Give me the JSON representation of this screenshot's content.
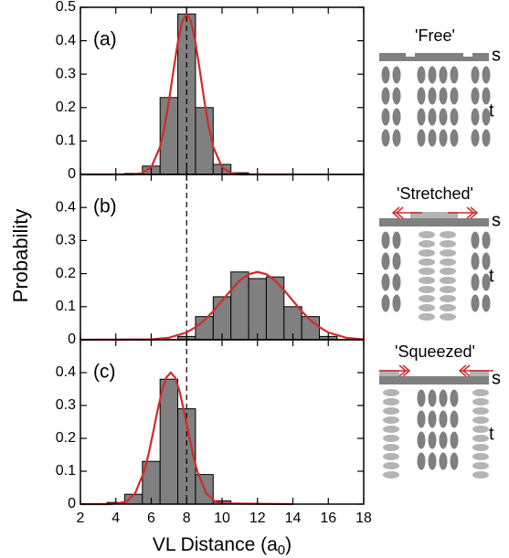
{
  "chart_data": [
    {
      "type": "histogram",
      "label": "(a)",
      "xlim": [
        2,
        18
      ],
      "ylim": [
        0,
        0.5
      ],
      "yticks": [
        0,
        0.1,
        0.2,
        0.3,
        0.4,
        0.5
      ],
      "xticks": [
        2,
        4,
        6,
        8,
        10,
        12,
        14,
        16,
        18
      ],
      "bins": [
        4.5,
        5.5,
        6.5,
        7.5,
        8.5,
        9.5,
        10.5,
        11.5
      ],
      "values": [
        0.003,
        0.025,
        0.23,
        0.48,
        0.2,
        0.03,
        0.005
      ],
      "color": "#808080",
      "reference_x": 8,
      "fit": {
        "color": "#d42a2a",
        "x": [
          2,
          5,
          5.5,
          6,
          6.5,
          6.75,
          7,
          7.25,
          7.5,
          7.75,
          8,
          8.25,
          8.5,
          8.75,
          9,
          9.25,
          9.5,
          10,
          10.5,
          11,
          14
        ],
        "values": [
          0,
          0,
          0.004,
          0.021,
          0.083,
          0.142,
          0.22,
          0.309,
          0.395,
          0.457,
          0.48,
          0.457,
          0.395,
          0.309,
          0.22,
          0.142,
          0.083,
          0.021,
          0.004,
          0,
          0
        ]
      }
    },
    {
      "type": "histogram",
      "label": "(b)",
      "xlim": [
        2,
        18
      ],
      "ylim": [
        0,
        0.5
      ],
      "yticks": [
        0,
        0.1,
        0.2,
        0.3,
        0.4
      ],
      "xticks": [
        2,
        4,
        6,
        8,
        10,
        12,
        14,
        16,
        18
      ],
      "bins": [
        7.5,
        8.5,
        9.5,
        10.5,
        11.5,
        12.5,
        13.5,
        14.5,
        15.5,
        16.5
      ],
      "values": [
        0.01,
        0.07,
        0.13,
        0.205,
        0.185,
        0.19,
        0.1,
        0.07,
        0.01
      ],
      "color": "#808080",
      "reference_x": 8,
      "fit": {
        "color": "#d42a2a",
        "x": [
          2,
          6,
          7,
          8,
          8.5,
          9,
          9.5,
          10,
          10.5,
          11,
          11.5,
          12,
          12.5,
          13,
          13.5,
          14,
          14.5,
          15,
          15.5,
          16,
          17,
          18
        ],
        "values": [
          0,
          0.001,
          0.006,
          0.022,
          0.038,
          0.059,
          0.086,
          0.118,
          0.15,
          0.179,
          0.198,
          0.205,
          0.198,
          0.179,
          0.15,
          0.118,
          0.086,
          0.059,
          0.038,
          0.022,
          0.006,
          0.001
        ]
      }
    },
    {
      "type": "histogram",
      "label": "(c)",
      "xlim": [
        2,
        18
      ],
      "ylim": [
        0,
        0.5
      ],
      "yticks": [
        0,
        0.1,
        0.2,
        0.3,
        0.4
      ],
      "xticks": [
        2,
        4,
        6,
        8,
        10,
        12,
        14,
        16,
        18
      ],
      "bins": [
        3.5,
        4.5,
        5.5,
        6.5,
        7.5,
        8.5,
        9.5,
        10.5
      ],
      "values": [
        0.005,
        0.03,
        0.13,
        0.38,
        0.29,
        0.09,
        0.01
      ],
      "color": "#808080",
      "reference_x": 8,
      "fit": {
        "color": "#d42a2a",
        "x": [
          2,
          3.6,
          4.1,
          4.6,
          5.1,
          5.6,
          5.85,
          6.1,
          6.35,
          6.6,
          6.85,
          7.1,
          7.35,
          7.6,
          7.85,
          8.1,
          8.35,
          8.6,
          9.1,
          9.6,
          10.1,
          14
        ],
        "values": [
          0,
          0,
          0.002,
          0.008,
          0.034,
          0.1,
          0.152,
          0.216,
          0.283,
          0.343,
          0.385,
          0.4,
          0.385,
          0.343,
          0.283,
          0.216,
          0.152,
          0.1,
          0.034,
          0.008,
          0.002,
          0
        ]
      }
    }
  ],
  "ylabel": "Probability",
  "xlabel": [
    "VL Distance (a",
    "0",
    ")"
  ],
  "diagram": {
    "panels": [
      {
        "title": "'Free'",
        "s": "s",
        "t": "t"
      },
      {
        "title": "'Stretched'",
        "s": "s",
        "t": "t"
      },
      {
        "title": "'Squeezed'",
        "s": "s",
        "t": "t"
      }
    ]
  }
}
